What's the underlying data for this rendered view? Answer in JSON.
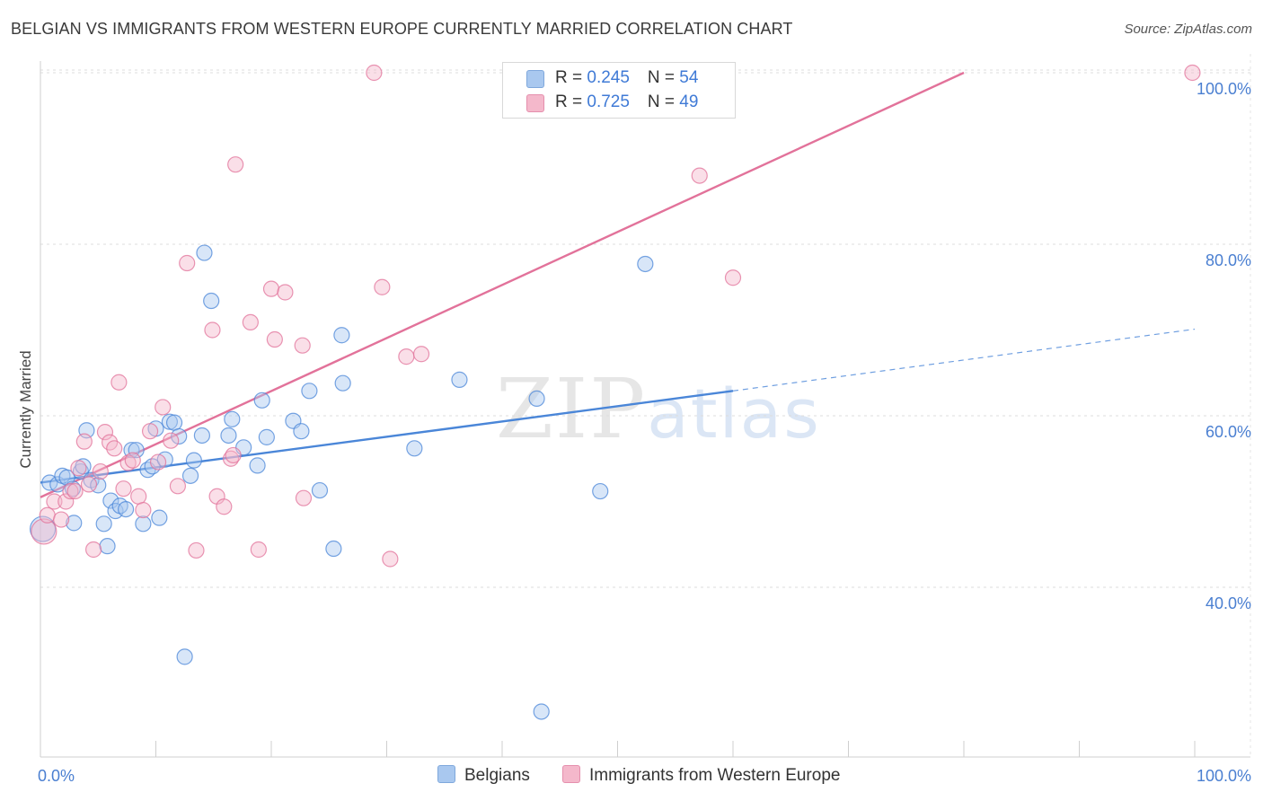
{
  "title": "BELGIAN VS IMMIGRANTS FROM WESTERN EUROPE CURRENTLY MARRIED CORRELATION CHART",
  "source": "Source: ZipAtlas.com",
  "watermark": {
    "zip": "ZIP",
    "atlas": "atlas"
  },
  "legend": {
    "rows": [
      {
        "r_label": "R = ",
        "r_value": "0.245",
        "n_label": "N = ",
        "n_value": "54",
        "color": "#a9c8ef"
      },
      {
        "r_label": "R = ",
        "r_value": "0.725",
        "n_label": "N = ",
        "n_value": "49",
        "color": "#f4b8cb"
      }
    ]
  },
  "bottom_legend": {
    "items": [
      {
        "label": "Belgians",
        "color": "#a9c8ef"
      },
      {
        "label": "Immigrants from Western Europe",
        "color": "#f4b8cb"
      }
    ]
  },
  "chart_data": {
    "type": "scatter",
    "title": "BELGIAN VS IMMIGRANTS FROM WESTERN EUROPE CURRENTLY MARRIED CORRELATION CHART",
    "xlabel": "",
    "ylabel": "Currently Married",
    "xlim": [
      0,
      100
    ],
    "ylim": [
      20,
      102
    ],
    "x_tick_labels": [
      "0.0%",
      "100.0%"
    ],
    "y_ticks": [
      40,
      60,
      80,
      100
    ],
    "y_tick_labels": [
      "40.0%",
      "60.0%",
      "80.0%",
      "100.0%"
    ],
    "grid": true,
    "series": [
      {
        "name": "Belgians",
        "color": "#4a86d8",
        "fill": "#a9c8ef",
        "r": 0.245,
        "n": 54,
        "trend": {
          "x": [
            0,
            60
          ],
          "y": [
            52.2,
            62.9
          ],
          "dashed_to": [
            100,
            70.1
          ]
        },
        "points": [
          [
            0.8,
            52.2
          ],
          [
            1.5,
            52.0
          ],
          [
            1.9,
            53.0
          ],
          [
            2.3,
            52.8
          ],
          [
            2.8,
            51.5
          ],
          [
            2.9,
            47.5
          ],
          [
            3.5,
            53.5
          ],
          [
            3.7,
            54.1
          ],
          [
            4.0,
            58.3
          ],
          [
            4.4,
            52.5
          ],
          [
            5.0,
            51.9
          ],
          [
            5.5,
            47.4
          ],
          [
            5.8,
            44.8
          ],
          [
            6.1,
            50.1
          ],
          [
            6.5,
            48.9
          ],
          [
            6.9,
            49.5
          ],
          [
            7.4,
            49.1
          ],
          [
            7.9,
            56.0
          ],
          [
            8.3,
            56.0
          ],
          [
            8.9,
            47.4
          ],
          [
            9.3,
            53.7
          ],
          [
            9.7,
            54.1
          ],
          [
            10.0,
            58.5
          ],
          [
            10.3,
            48.1
          ],
          [
            10.8,
            54.9
          ],
          [
            11.2,
            59.3
          ],
          [
            11.6,
            59.2
          ],
          [
            12.0,
            57.6
          ],
          [
            12.5,
            31.9
          ],
          [
            13.0,
            53.0
          ],
          [
            13.3,
            54.8
          ],
          [
            14.0,
            57.7
          ],
          [
            14.2,
            79.0
          ],
          [
            14.8,
            73.4
          ],
          [
            16.3,
            57.7
          ],
          [
            16.6,
            59.6
          ],
          [
            17.6,
            56.3
          ],
          [
            18.8,
            54.2
          ],
          [
            19.2,
            61.8
          ],
          [
            19.6,
            57.5
          ],
          [
            21.9,
            59.4
          ],
          [
            22.6,
            58.2
          ],
          [
            23.3,
            62.9
          ],
          [
            24.2,
            51.3
          ],
          [
            25.4,
            44.5
          ],
          [
            26.1,
            69.4
          ],
          [
            26.2,
            63.8
          ],
          [
            32.4,
            56.2
          ],
          [
            36.3,
            64.2
          ],
          [
            43.0,
            62.0
          ],
          [
            43.4,
            25.5
          ],
          [
            48.5,
            51.2
          ],
          [
            52.4,
            77.7
          ],
          [
            0.2,
            46.8
          ]
        ]
      },
      {
        "name": "Immigrants from Western Europe",
        "color": "#e2729a",
        "fill": "#f4b8cb",
        "r": 0.725,
        "n": 49,
        "trend": {
          "x": [
            0,
            80
          ],
          "y": [
            50.5,
            100
          ]
        },
        "points": [
          [
            0.3,
            46.5
          ],
          [
            0.6,
            48.4
          ],
          [
            1.2,
            50.0
          ],
          [
            1.8,
            47.9
          ],
          [
            2.2,
            50.0
          ],
          [
            2.6,
            51.2
          ],
          [
            3.0,
            51.2
          ],
          [
            3.3,
            53.9
          ],
          [
            3.8,
            57.0
          ],
          [
            4.2,
            52.0
          ],
          [
            4.6,
            44.4
          ],
          [
            5.2,
            53.5
          ],
          [
            5.6,
            58.1
          ],
          [
            6.0,
            56.9
          ],
          [
            6.4,
            56.2
          ],
          [
            6.8,
            63.9
          ],
          [
            7.2,
            51.5
          ],
          [
            7.6,
            54.5
          ],
          [
            8.0,
            54.8
          ],
          [
            8.5,
            50.6
          ],
          [
            8.9,
            49.0
          ],
          [
            9.5,
            58.2
          ],
          [
            10.2,
            54.6
          ],
          [
            10.6,
            61.0
          ],
          [
            11.3,
            57.1
          ],
          [
            11.9,
            51.8
          ],
          [
            12.7,
            77.8
          ],
          [
            13.5,
            44.3
          ],
          [
            14.9,
            70.0
          ],
          [
            15.3,
            50.6
          ],
          [
            15.9,
            49.4
          ],
          [
            16.5,
            55.0
          ],
          [
            16.7,
            55.4
          ],
          [
            16.9,
            89.3
          ],
          [
            18.2,
            70.9
          ],
          [
            18.9,
            44.4
          ],
          [
            20.0,
            74.8
          ],
          [
            20.3,
            68.9
          ],
          [
            21.2,
            74.4
          ],
          [
            22.7,
            68.2
          ],
          [
            22.8,
            50.4
          ],
          [
            28.9,
            100.0
          ],
          [
            29.6,
            75.0
          ],
          [
            30.3,
            43.3
          ],
          [
            31.7,
            66.9
          ],
          [
            33.0,
            67.2
          ],
          [
            57.1,
            88.0
          ],
          [
            60.0,
            76.1
          ],
          [
            99.8,
            100.0
          ]
        ]
      }
    ]
  }
}
